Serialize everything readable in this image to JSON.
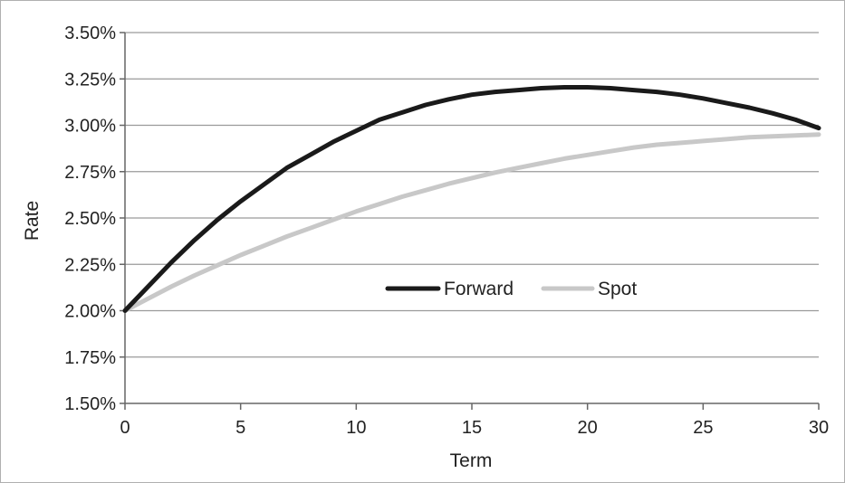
{
  "chart_data": {
    "type": "line",
    "xlabel": "Term",
    "ylabel": "Rate",
    "xlim": [
      0,
      30
    ],
    "ylim": [
      1.5,
      3.5
    ],
    "xticks": [
      0,
      5,
      10,
      15,
      20,
      25,
      30
    ],
    "yticks": [
      1.5,
      1.75,
      2.0,
      2.25,
      2.5,
      2.75,
      3.0,
      3.25,
      3.5
    ],
    "xtick_labels": [
      "0",
      "5",
      "10",
      "15",
      "20",
      "25",
      "30"
    ],
    "ytick_labels": [
      "1.50%",
      "1.75%",
      "2.00%",
      "2.25%",
      "2.50%",
      "2.75%",
      "3.00%",
      "3.25%",
      "3.50%"
    ],
    "grid": "horizontal",
    "legend_position": "center",
    "series": [
      {
        "name": "Forward",
        "color": "#1a1a1a",
        "x": [
          0,
          1,
          2,
          3,
          4,
          5,
          6,
          7,
          8,
          9,
          10,
          11,
          12,
          13,
          14,
          15,
          16,
          17,
          18,
          19,
          20,
          21,
          22,
          23,
          24,
          25,
          26,
          27,
          28,
          29,
          30
        ],
        "y": [
          2.0,
          2.13,
          2.26,
          2.38,
          2.49,
          2.59,
          2.68,
          2.77,
          2.84,
          2.91,
          2.97,
          3.03,
          3.07,
          3.11,
          3.14,
          3.165,
          3.18,
          3.19,
          3.2,
          3.205,
          3.205,
          3.2,
          3.19,
          3.18,
          3.165,
          3.145,
          3.12,
          3.095,
          3.065,
          3.03,
          2.985
        ]
      },
      {
        "name": "Spot",
        "color": "#c8c8c8",
        "x": [
          0,
          1,
          2,
          3,
          4,
          5,
          6,
          7,
          8,
          9,
          10,
          11,
          12,
          13,
          14,
          15,
          16,
          17,
          18,
          19,
          20,
          21,
          22,
          23,
          24,
          25,
          26,
          27,
          28,
          29,
          30
        ],
        "y": [
          2.0,
          2.065,
          2.13,
          2.19,
          2.245,
          2.3,
          2.35,
          2.4,
          2.445,
          2.49,
          2.535,
          2.575,
          2.615,
          2.65,
          2.685,
          2.715,
          2.745,
          2.77,
          2.795,
          2.82,
          2.84,
          2.86,
          2.88,
          2.895,
          2.905,
          2.915,
          2.925,
          2.935,
          2.94,
          2.945,
          2.95
        ]
      }
    ]
  }
}
